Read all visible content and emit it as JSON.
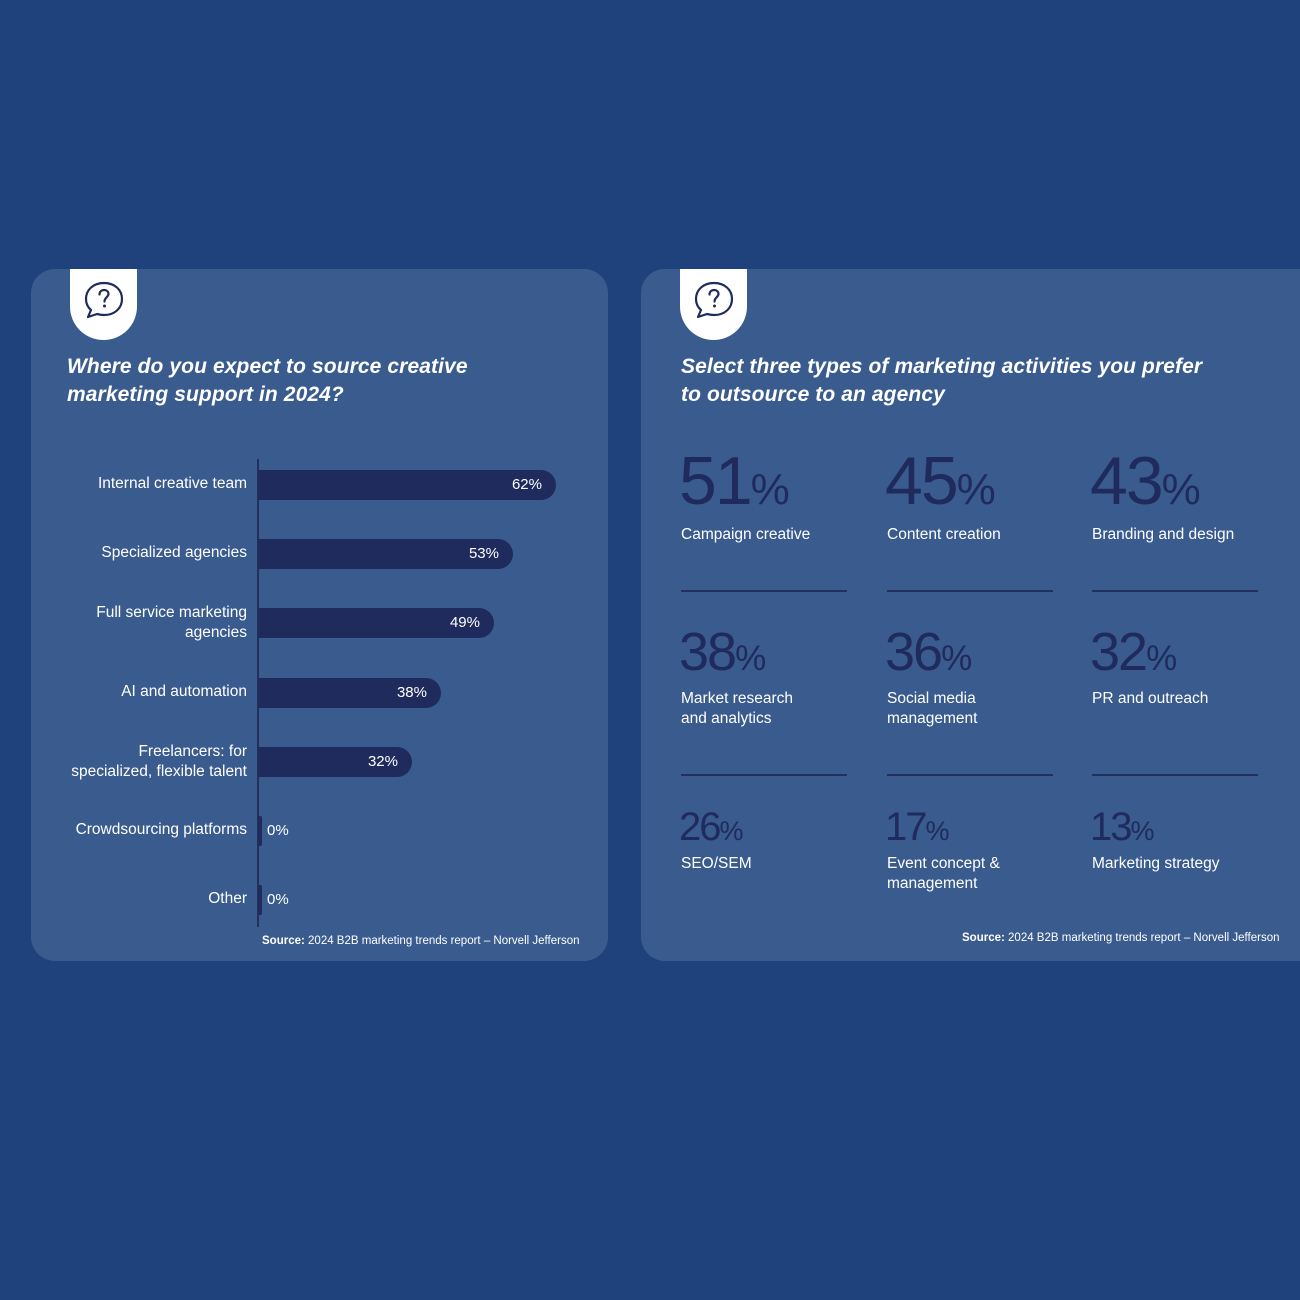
{
  "left_panel": {
    "title_line1": "Where do you expect to source creative",
    "title_line2": "marketing support in 2024?",
    "icon": "question-speech-bubble-icon",
    "source_bold": "Source:",
    "source_text": " 2024 B2B marketing trends report – Norvell Jefferson"
  },
  "right_panel": {
    "title_line1": "Select three types of marketing activities you prefer",
    "title_line2": "to outsource to an agency",
    "icon": "question-speech-bubble-icon",
    "source_bold": "Source:",
    "source_text": " 2024 B2B marketing trends report – Norvell Jefferson",
    "stats": [
      {
        "value": "51",
        "unit": "%",
        "label": "Campaign creative"
      },
      {
        "value": "45",
        "unit": "%",
        "label": "Content creation"
      },
      {
        "value": "43",
        "unit": "%",
        "label": "Branding and design"
      },
      {
        "value": "38",
        "unit": "%",
        "label": "Market research and analytics"
      },
      {
        "value": "36",
        "unit": "%",
        "label": "Social media management"
      },
      {
        "value": "32",
        "unit": "%",
        "label": "PR and outreach"
      },
      {
        "value": "26",
        "unit": "%",
        "label": "SEO/SEM"
      },
      {
        "value": "17",
        "unit": "%",
        "label": "Event concept & management"
      },
      {
        "value": "13",
        "unit": "%",
        "label": "Marketing strategy"
      }
    ]
  },
  "colors": {
    "background": "#1f427c",
    "card": "#3a5b8e",
    "bar": "#1f2b5c",
    "text": "#ffffff",
    "stat_number": "#1f2b5c"
  },
  "chart_data": {
    "type": "bar",
    "orientation": "horizontal",
    "title": "Where do you expect to source creative marketing support in 2024?",
    "categories": [
      "Internal creative team",
      "Specialized agencies",
      "Full service marketing agencies",
      "AI and automation",
      "Freelancers: for specialized, flexible talent",
      "Crowdsourcing platforms",
      "Other"
    ],
    "values": [
      62,
      53,
      49,
      38,
      32,
      0,
      0
    ],
    "value_labels": [
      "62%",
      "53%",
      "49%",
      "38%",
      "32%",
      "0%",
      "0%"
    ],
    "xlim": [
      0,
      62
    ],
    "grid": false
  }
}
